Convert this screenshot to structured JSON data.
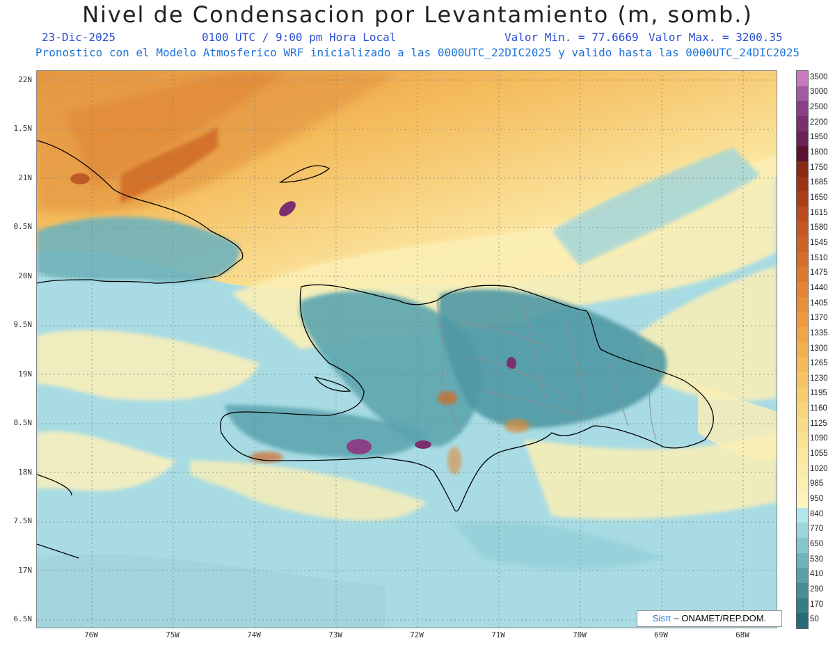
{
  "header": {
    "title": "Nivel de Condensacion por Levantamiento (m, somb.)",
    "date": "23-Dic-2025",
    "time": "0100 UTC / 9:00 pm Hora Local",
    "min_label": "Valor Min. = 77.6669",
    "max_label": "Valor Max. = 3200.35",
    "forecast_line": "Pronostico con el Modelo Atmosferico WRF inicializado a las 0000UTC_22DIC2025 y valido hasta las  0000UTC_24DIC2025"
  },
  "map": {
    "lat_labels": [
      "22N",
      "1.5N",
      "21N",
      "0.5N",
      "20N",
      "9.5N",
      "19N",
      "8.5N",
      "18N",
      "7.5N",
      "17N",
      "6.5N"
    ],
    "lon_labels": [
      "76W",
      "75W",
      "74W",
      "73W",
      "72W",
      "71W",
      "70W",
      "69W",
      "68W"
    ]
  },
  "colorbar": {
    "labels": [
      "3500",
      "3000",
      "2500",
      "2200",
      "1950",
      "1800",
      "1750",
      "1685",
      "1650",
      "1615",
      "1580",
      "1545",
      "1510",
      "1475",
      "1440",
      "1405",
      "1370",
      "1335",
      "1300",
      "1265",
      "1230",
      "1195",
      "1160",
      "1125",
      "1090",
      "1055",
      "1020",
      "985",
      "950",
      "840",
      "770",
      "650",
      "530",
      "410",
      "290",
      "170",
      "50"
    ],
    "colors": [
      "#c77ac0",
      "#a35aa0",
      "#8a3f86",
      "#7a2f6e",
      "#6b2357",
      "#5a1230",
      "#8a2b14",
      "#9c3415",
      "#ad3e18",
      "#bf4a1b",
      "#c85620",
      "#d06224",
      "#d86d28",
      "#df782d",
      "#e58432",
      "#ea8f37",
      "#ee9a3d",
      "#f1a544",
      "#f4b04c",
      "#f6ba56",
      "#f7c461",
      "#f8cd6d",
      "#f9d57a",
      "#fadc87",
      "#fbe293",
      "#fbe79e",
      "#fbeba8",
      "#fcefb2",
      "#fdf4bd",
      "#b2e6ec",
      "#9bd6dc",
      "#85c5cc",
      "#6fb3bb",
      "#5aa1aa",
      "#468f99",
      "#347e88",
      "#246c77"
    ]
  },
  "credit": {
    "brand": "Sisπ",
    "text": " – ONAMET/REP.DOM."
  }
}
